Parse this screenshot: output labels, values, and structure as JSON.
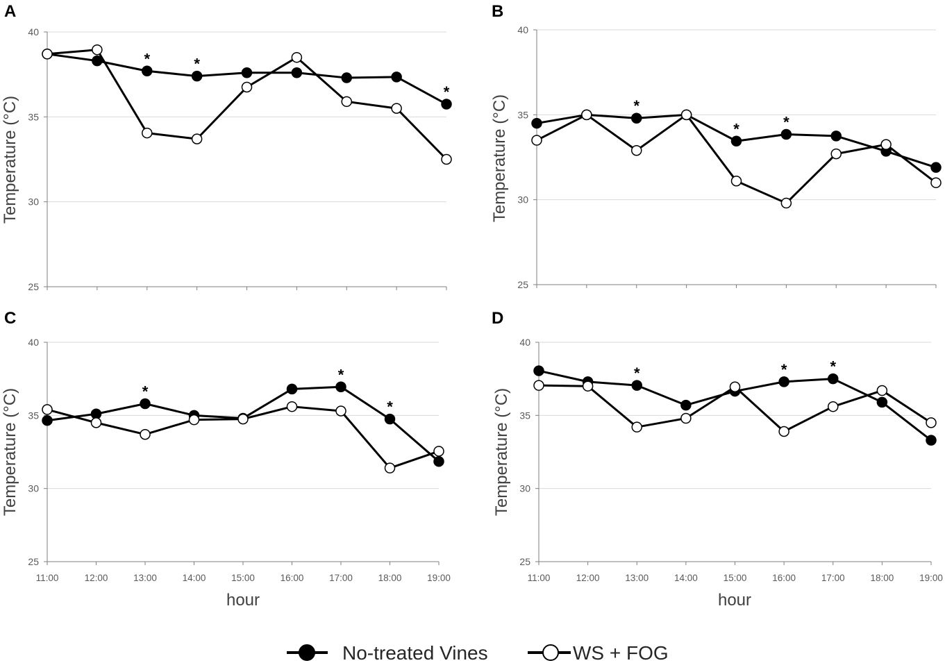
{
  "legend": {
    "series_a": "No-treated Vines",
    "series_b": "WS + FOG"
  },
  "chart_data": [
    {
      "type": "line",
      "panel": "A",
      "ylabel": "Temperature (°C)",
      "xlabel": "",
      "ylim": [
        25,
        40
      ],
      "yticks": [
        25,
        30,
        35,
        40
      ],
      "categories": [
        "11:00",
        "12:00",
        "13:00",
        "14:00",
        "15:00",
        "16:00",
        "17:00",
        "18:00",
        "19:00"
      ],
      "series": [
        {
          "name": "No-treated Vines",
          "values": [
            38.7,
            38.3,
            37.7,
            37.4,
            37.6,
            37.6,
            37.3,
            37.35,
            35.75
          ]
        },
        {
          "name": "WS + FOG",
          "values": [
            38.7,
            38.95,
            34.05,
            33.7,
            36.75,
            38.5,
            35.9,
            35.5,
            32.5
          ]
        }
      ],
      "significant": [
        "13:00",
        "14:00",
        "19:00"
      ],
      "show_xticks": false
    },
    {
      "type": "line",
      "panel": "B",
      "ylabel": "Temperature (°C)",
      "xlabel": "",
      "ylim": [
        25,
        40
      ],
      "yticks": [
        25,
        30,
        35,
        40
      ],
      "categories": [
        "11:00",
        "12:00",
        "13:00",
        "14:00",
        "15:00",
        "16:00",
        "17:00",
        "18:00",
        "19:00"
      ],
      "series": [
        {
          "name": "No-treated Vines",
          "values": [
            34.5,
            35.0,
            34.8,
            35.0,
            33.45,
            33.85,
            33.75,
            32.85,
            31.9
          ]
        },
        {
          "name": "WS + FOG",
          "values": [
            33.5,
            35.0,
            32.9,
            35.0,
            31.1,
            29.8,
            32.7,
            33.25,
            31.0
          ]
        }
      ],
      "significant": [
        "13:00",
        "15:00",
        "16:00"
      ],
      "show_xticks": false
    },
    {
      "type": "line",
      "panel": "C",
      "ylabel": "Temperature (°C)",
      "xlabel": "hour",
      "ylim": [
        25,
        40
      ],
      "yticks": [
        25,
        30,
        35,
        40
      ],
      "categories": [
        "11:00",
        "12:00",
        "13:00",
        "14:00",
        "15:00",
        "16:00",
        "17:00",
        "18:00",
        "19:00"
      ],
      "series": [
        {
          "name": "No-treated Vines",
          "values": [
            34.65,
            35.1,
            35.8,
            35.0,
            34.8,
            36.8,
            36.95,
            34.75,
            31.85
          ]
        },
        {
          "name": "WS + FOG",
          "values": [
            35.4,
            34.5,
            33.7,
            34.7,
            34.75,
            35.6,
            35.3,
            31.4,
            32.55
          ]
        }
      ],
      "significant": [
        "13:00",
        "17:00",
        "18:00"
      ],
      "show_xticks": true
    },
    {
      "type": "line",
      "panel": "D",
      "ylabel": "Temperature (°C)",
      "xlabel": "hour",
      "ylim": [
        25,
        40
      ],
      "yticks": [
        25,
        30,
        35,
        40
      ],
      "categories": [
        "11:00",
        "12:00",
        "13:00",
        "14:00",
        "15:00",
        "16:00",
        "17:00",
        "18:00",
        "19:00"
      ],
      "series": [
        {
          "name": "No-treated Vines",
          "values": [
            38.05,
            37.3,
            37.05,
            35.7,
            36.65,
            37.3,
            37.5,
            35.9,
            33.3
          ]
        },
        {
          "name": "WS + FOG",
          "values": [
            37.05,
            37.0,
            34.2,
            34.8,
            36.95,
            33.9,
            35.6,
            36.7,
            34.5
          ]
        }
      ],
      "significant": [
        "13:00",
        "16:00",
        "17:00"
      ],
      "show_xticks": true
    }
  ]
}
